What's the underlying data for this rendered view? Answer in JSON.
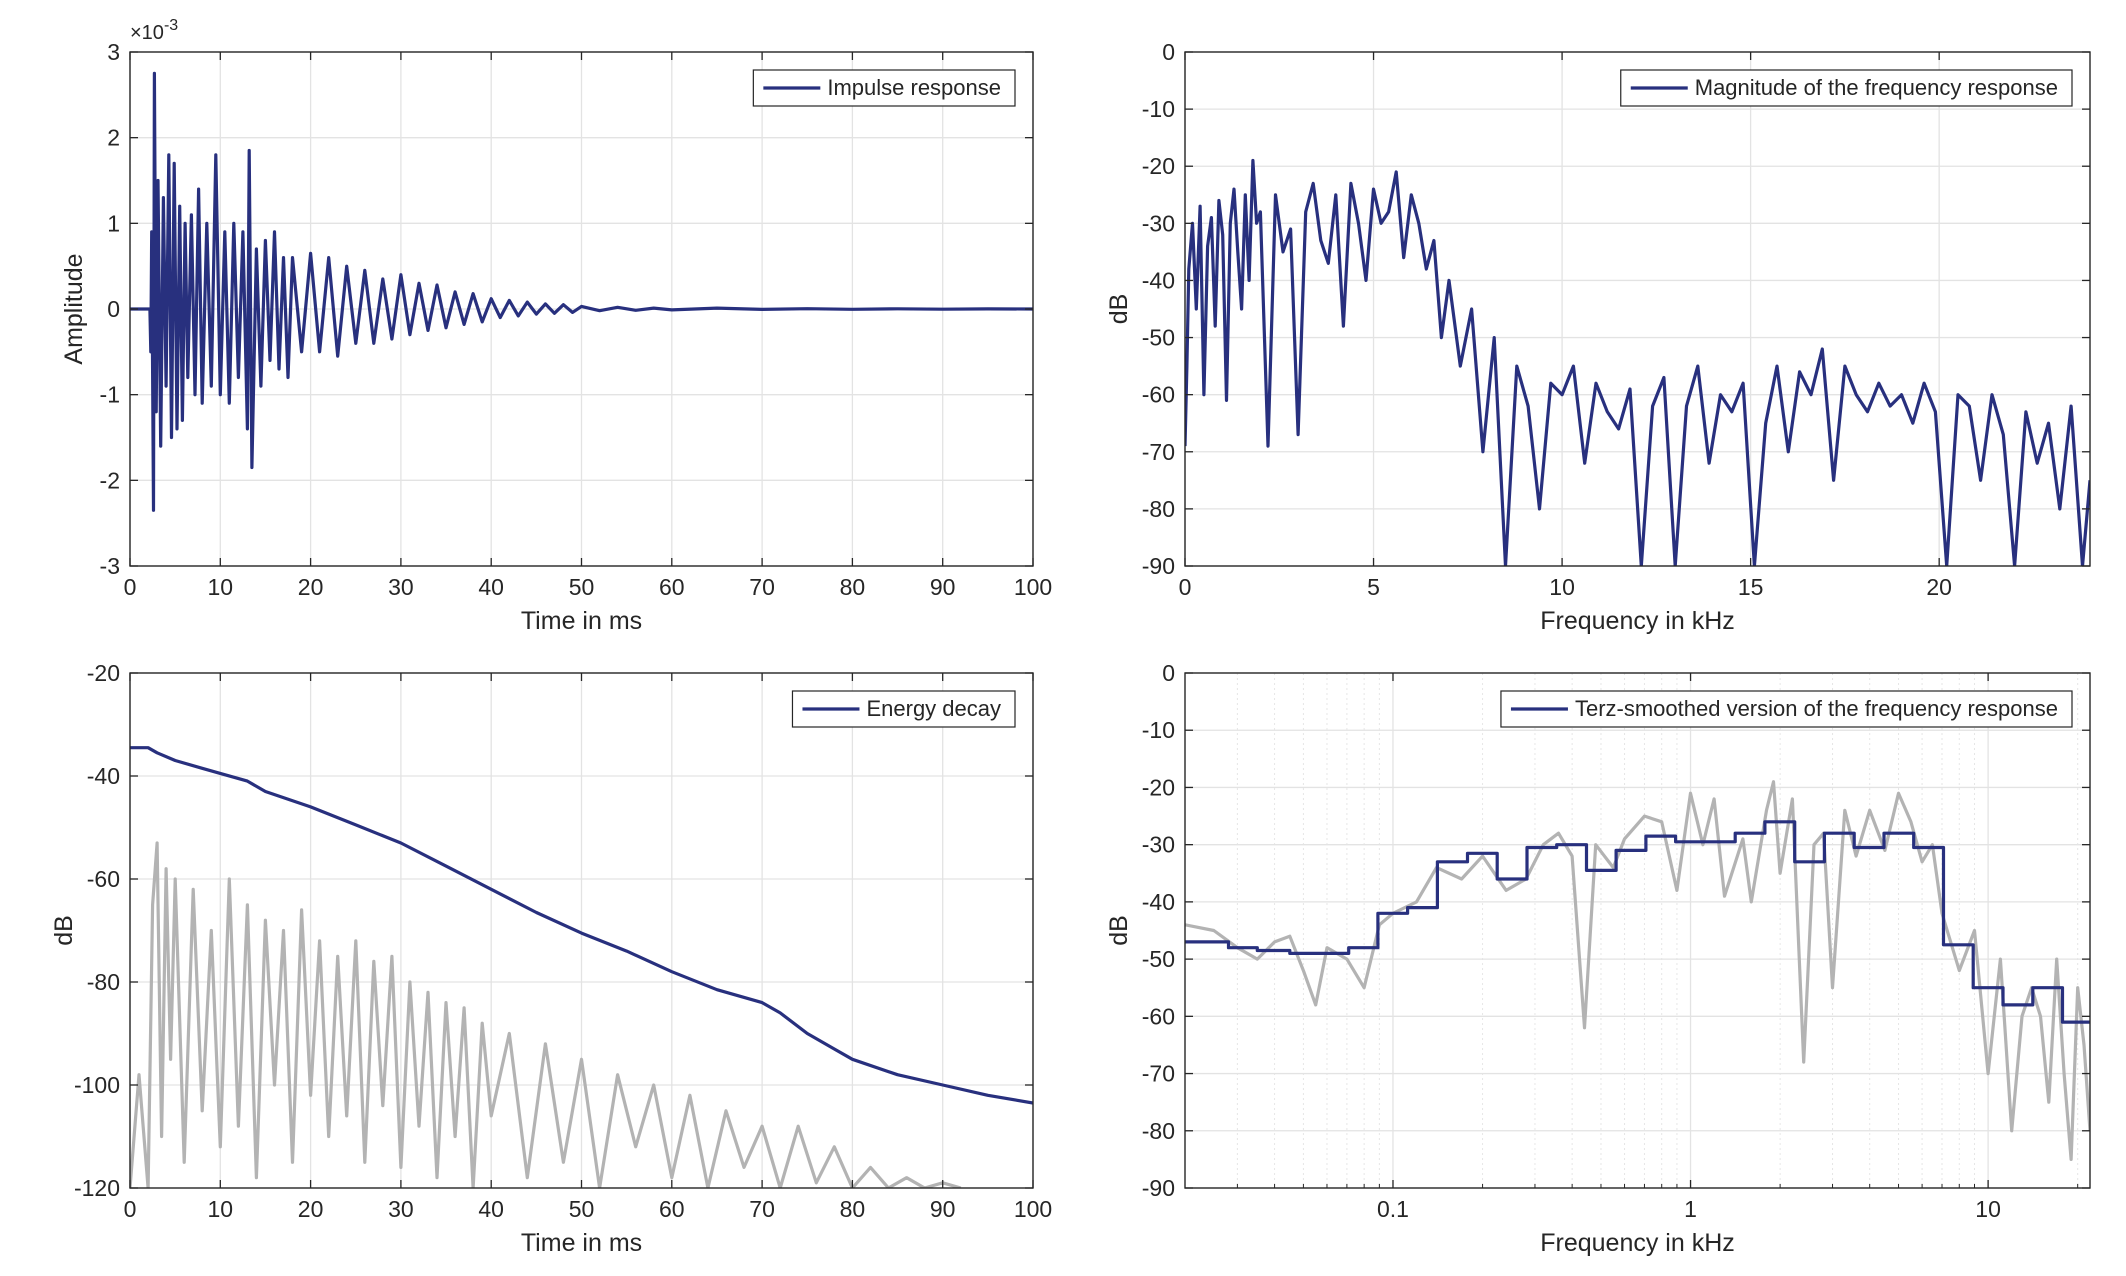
{
  "colors": {
    "series": "#28307e",
    "gray": "#b3b3b3",
    "grid": "#e3e3e3",
    "axis": "#262626"
  },
  "chart_data": [
    {
      "id": "impulse",
      "type": "line",
      "xlabel": "Time in ms",
      "ylabel": "Amplitude",
      "exponent_label": "×10^{-3}",
      "exponent_base": "×10",
      "exponent_sup": "-3",
      "xlim": [
        0,
        100
      ],
      "ylim": [
        -3,
        3
      ],
      "xticks": [
        0,
        10,
        20,
        30,
        40,
        50,
        60,
        70,
        80,
        90,
        100
      ],
      "xtick_labels": [
        "0",
        "10",
        "20",
        "30",
        "40",
        "50",
        "60",
        "70",
        "80",
        "90",
        "100"
      ],
      "yticks": [
        -3,
        -2,
        -1,
        0,
        1,
        2,
        3
      ],
      "ytick_labels": [
        "-3",
        "-2",
        "-1",
        "0",
        "1",
        "2",
        "3"
      ],
      "xscale": "linear",
      "grid": true,
      "legend_position": "top-right",
      "series": [
        {
          "name": "Impulse response",
          "color": "#28307e",
          "x": [
            0,
            2.2,
            2.3,
            2.4,
            2.6,
            2.7,
            2.9,
            3.1,
            3.4,
            3.7,
            4.0,
            4.3,
            4.6,
            4.9,
            5.2,
            5.5,
            5.8,
            6.1,
            6.4,
            6.8,
            7.2,
            7.6,
            8.0,
            8.5,
            9.0,
            9.5,
            10.0,
            10.5,
            11.0,
            11.5,
            12.0,
            12.5,
            13.0,
            13.2,
            13.5,
            14.0,
            14.5,
            15.0,
            15.5,
            16.0,
            16.5,
            17.0,
            17.5,
            18.0,
            19.0,
            20.0,
            21.0,
            22.0,
            23.0,
            24.0,
            25.0,
            26.0,
            27.0,
            28.0,
            29.0,
            30.0,
            31.0,
            32.0,
            33.0,
            34.0,
            35.0,
            36.0,
            37.0,
            38.0,
            39.0,
            40.0,
            41.0,
            42.0,
            43.0,
            44.0,
            45.0,
            46.0,
            47.0,
            48.0,
            49.0,
            50.0,
            52.0,
            54.0,
            56.0,
            58.0,
            60.0,
            65.0,
            70.0,
            75.0,
            80.0,
            85.0,
            90.0,
            95.0,
            100.0
          ],
          "y": [
            0,
            0,
            -0.5,
            0.9,
            -2.35,
            2.75,
            -1.2,
            1.5,
            -1.6,
            1.3,
            -0.9,
            1.8,
            -1.5,
            1.7,
            -1.4,
            1.2,
            -1.3,
            1.0,
            -0.8,
            1.1,
            -1.0,
            1.4,
            -1.1,
            1.0,
            -0.9,
            1.8,
            -1.0,
            0.9,
            -1.1,
            1.0,
            -0.8,
            0.9,
            -1.4,
            1.85,
            -1.85,
            0.7,
            -0.9,
            0.8,
            -0.6,
            0.9,
            -0.7,
            0.6,
            -0.8,
            0.6,
            -0.5,
            0.65,
            -0.5,
            0.6,
            -0.55,
            0.5,
            -0.4,
            0.45,
            -0.4,
            0.35,
            -0.35,
            0.4,
            -0.3,
            0.3,
            -0.25,
            0.28,
            -0.22,
            0.2,
            -0.18,
            0.18,
            -0.15,
            0.12,
            -0.1,
            0.1,
            -0.08,
            0.08,
            -0.06,
            0.06,
            -0.05,
            0.05,
            -0.04,
            0.03,
            -0.02,
            0.02,
            -0.015,
            0.01,
            -0.01,
            0.01,
            -0.005,
            0.004,
            -0.003,
            0.002,
            -0.002,
            0.001,
            0
          ]
        }
      ]
    },
    {
      "id": "magnitude",
      "type": "line",
      "xlabel": "Frequency in kHz",
      "ylabel": "dB",
      "xlim": [
        0,
        24
      ],
      "ylim": [
        -90,
        0
      ],
      "xticks": [
        0,
        5,
        10,
        15,
        20
      ],
      "xtick_labels": [
        "0",
        "5",
        "10",
        "15",
        "20"
      ],
      "yticks": [
        -90,
        -80,
        -70,
        -60,
        -50,
        -40,
        -30,
        -20,
        -10,
        0
      ],
      "ytick_labels": [
        "-90",
        "-80",
        "-70",
        "-60",
        "-50",
        "-40",
        "-30",
        "-20",
        "-10",
        "0"
      ],
      "xscale": "linear",
      "grid": true,
      "legend_position": "top-right",
      "series": [
        {
          "name": "Magnitude of the frequency response",
          "color": "#28307e",
          "x": [
            0,
            0.05,
            0.1,
            0.2,
            0.3,
            0.4,
            0.5,
            0.6,
            0.7,
            0.8,
            0.9,
            1.0,
            1.1,
            1.2,
            1.3,
            1.4,
            1.5,
            1.6,
            1.7,
            1.8,
            1.9,
            2.0,
            2.2,
            2.4,
            2.6,
            2.8,
            3.0,
            3.2,
            3.4,
            3.6,
            3.8,
            4.0,
            4.2,
            4.4,
            4.6,
            4.8,
            5.0,
            5.2,
            5.4,
            5.6,
            5.8,
            6.0,
            6.2,
            6.4,
            6.6,
            6.8,
            7.0,
            7.3,
            7.6,
            7.9,
            8.2,
            8.5,
            8.8,
            9.1,
            9.4,
            9.7,
            10.0,
            10.3,
            10.6,
            10.9,
            11.2,
            11.5,
            11.8,
            12.1,
            12.4,
            12.7,
            13.0,
            13.3,
            13.6,
            13.9,
            14.2,
            14.5,
            14.8,
            15.1,
            15.4,
            15.7,
            16.0,
            16.3,
            16.6,
            16.9,
            17.2,
            17.5,
            17.8,
            18.1,
            18.4,
            18.7,
            19.0,
            19.3,
            19.6,
            19.9,
            20.2,
            20.5,
            20.8,
            21.1,
            21.4,
            21.7,
            22.0,
            22.3,
            22.6,
            22.9,
            23.2,
            23.5,
            23.8,
            24.0
          ],
          "y": [
            -69,
            -55,
            -38,
            -30,
            -45,
            -27,
            -60,
            -34,
            -29,
            -48,
            -26,
            -32,
            -61,
            -30,
            -24,
            -35,
            -45,
            -25,
            -40,
            -19,
            -30,
            -28,
            -69,
            -25,
            -35,
            -31,
            -67,
            -28,
            -23,
            -33,
            -37,
            -25,
            -48,
            -23,
            -30,
            -40,
            -24,
            -30,
            -28,
            -21,
            -36,
            -25,
            -30,
            -38,
            -33,
            -50,
            -40,
            -55,
            -45,
            -70,
            -50,
            -90,
            -55,
            -62,
            -80,
            -58,
            -60,
            -55,
            -72,
            -58,
            -63,
            -66,
            -59,
            -90,
            -62,
            -57,
            -90,
            -62,
            -55,
            -72,
            -60,
            -63,
            -58,
            -90,
            -65,
            -55,
            -70,
            -56,
            -60,
            -52,
            -75,
            -55,
            -60,
            -63,
            -58,
            -62,
            -60,
            -65,
            -58,
            -63,
            -90,
            -60,
            -62,
            -75,
            -60,
            -67,
            -90,
            -63,
            -72,
            -65,
            -80,
            -62,
            -90,
            -75
          ]
        }
      ]
    },
    {
      "id": "energy",
      "type": "line",
      "xlabel": "Time in ms",
      "ylabel": "dB",
      "xlim": [
        0,
        100
      ],
      "ylim": [
        -120,
        -20
      ],
      "xticks": [
        0,
        10,
        20,
        30,
        40,
        50,
        60,
        70,
        80,
        90,
        100
      ],
      "xtick_labels": [
        "0",
        "10",
        "20",
        "30",
        "40",
        "50",
        "60",
        "70",
        "80",
        "90",
        "100"
      ],
      "yticks": [
        -120,
        -100,
        -80,
        -60,
        -40,
        -20
      ],
      "ytick_labels": [
        "-120",
        "-100",
        "-80",
        "-60",
        "-40",
        "-20"
      ],
      "xscale": "linear",
      "grid": true,
      "legend_position": "top-right",
      "series": [
        {
          "color": "#b3b3b3",
          "x": [
            0,
            1,
            2,
            2.5,
            3,
            3.5,
            4,
            4.5,
            5,
            6,
            7,
            8,
            9,
            10,
            11,
            12,
            13,
            14,
            15,
            16,
            17,
            18,
            19,
            20,
            21,
            22,
            23,
            24,
            25,
            26,
            27,
            28,
            29,
            30,
            31,
            32,
            33,
            34,
            35,
            36,
            37,
            38,
            39,
            40,
            42,
            44,
            46,
            48,
            50,
            52,
            54,
            56,
            58,
            60,
            62,
            64,
            66,
            68,
            70,
            72,
            74,
            76,
            78,
            80,
            82,
            84,
            86,
            88,
            90,
            92
          ],
          "y": [
            -120,
            -98,
            -120,
            -65,
            -53,
            -110,
            -58,
            -95,
            -60,
            -115,
            -62,
            -105,
            -70,
            -112,
            -60,
            -108,
            -65,
            -118,
            -68,
            -100,
            -70,
            -115,
            -66,
            -102,
            -72,
            -110,
            -75,
            -106,
            -72,
            -115,
            -76,
            -104,
            -75,
            -116,
            -80,
            -108,
            -82,
            -118,
            -84,
            -110,
            -85,
            -120,
            -88,
            -106,
            -90,
            -118,
            -92,
            -115,
            -95,
            -120,
            -98,
            -112,
            -100,
            -118,
            -102,
            -120,
            -105,
            -116,
            -108,
            -120,
            -108,
            -119,
            -112,
            -120,
            -116,
            -120,
            -118,
            -120,
            -119,
            -120
          ]
        },
        {
          "name": "Energy decay",
          "color": "#28307e",
          "x": [
            0,
            2,
            3,
            5,
            8,
            10,
            13,
            15,
            20,
            25,
            30,
            35,
            40,
            45,
            50,
            55,
            60,
            65,
            70,
            72,
            75,
            78,
            80,
            85,
            90,
            95,
            100
          ],
          "y": [
            -34.5,
            -34.5,
            -35.5,
            -37,
            -38.5,
            -39.5,
            -41,
            -43,
            -46,
            -49.5,
            -53,
            -57.5,
            -62,
            -66.5,
            -70.5,
            -74,
            -78,
            -81.5,
            -84,
            -86,
            -90,
            -93,
            -95,
            -98,
            -100,
            -102,
            -103.5
          ]
        }
      ]
    },
    {
      "id": "terz",
      "type": "line",
      "xlabel": "Frequency in kHz",
      "ylabel": "dB",
      "xlim": [
        0.02,
        22
      ],
      "ylim": [
        -90,
        0
      ],
      "xticks": [
        0.1,
        1,
        10
      ],
      "xtick_labels": [
        "0.1",
        "1",
        "10"
      ],
      "yticks": [
        -90,
        -80,
        -70,
        -60,
        -50,
        -40,
        -30,
        -20,
        -10,
        0
      ],
      "ytick_labels": [
        "-90",
        "-80",
        "-70",
        "-60",
        "-50",
        "-40",
        "-30",
        "-20",
        "-10",
        "0"
      ],
      "xscale": "log",
      "grid": true,
      "legend_position": "top-right",
      "series": [
        {
          "color": "#b3b3b3",
          "x": [
            0.02,
            0.025,
            0.03,
            0.035,
            0.04,
            0.045,
            0.05,
            0.055,
            0.06,
            0.07,
            0.08,
            0.09,
            0.1,
            0.12,
            0.14,
            0.17,
            0.2,
            0.24,
            0.28,
            0.32,
            0.36,
            0.4,
            0.44,
            0.48,
            0.55,
            0.6,
            0.7,
            0.8,
            0.9,
            1.0,
            1.1,
            1.2,
            1.3,
            1.5,
            1.6,
            1.8,
            1.9,
            2.0,
            2.2,
            2.4,
            2.6,
            2.8,
            3.0,
            3.3,
            3.6,
            4.0,
            4.5,
            5.0,
            5.5,
            6.0,
            6.5,
            7.0,
            8.0,
            9.0,
            10.0,
            11.0,
            12.0,
            13.0,
            14.0,
            15.0,
            16.0,
            17.0,
            18.0,
            19.0,
            20.0,
            21.0,
            22.0
          ],
          "y": [
            -44,
            -45,
            -48,
            -50,
            -47,
            -46,
            -52,
            -58,
            -48,
            -50,
            -55,
            -44,
            -42,
            -40,
            -34,
            -36,
            -32,
            -38,
            -36,
            -30,
            -28,
            -32,
            -62,
            -30,
            -34,
            -29,
            -25,
            -26,
            -38,
            -21,
            -30,
            -22,
            -39,
            -29,
            -40,
            -24,
            -19,
            -35,
            -22,
            -68,
            -30,
            -28,
            -55,
            -24,
            -32,
            -24,
            -31,
            -21,
            -26,
            -33,
            -30,
            -42,
            -52,
            -45,
            -70,
            -50,
            -80,
            -60,
            -55,
            -60,
            -75,
            -50,
            -70,
            -85,
            -55,
            -65,
            -80
          ]
        },
        {
          "name": "Terz-smoothed version of the frequency response",
          "color": "#28307e",
          "step_edges": [
            0.02,
            0.028,
            0.035,
            0.045,
            0.056,
            0.071,
            0.089,
            0.112,
            0.141,
            0.178,
            0.224,
            0.282,
            0.355,
            0.447,
            0.562,
            0.708,
            0.891,
            1.122,
            1.413,
            1.778,
            2.239,
            2.818,
            3.548,
            4.467,
            5.623,
            7.079,
            8.913,
            11.22,
            14.13,
            17.78,
            22.0
          ],
          "step_values": [
            -47,
            -48,
            -48.5,
            -49,
            -49,
            -48,
            -42,
            -41,
            -33,
            -31.5,
            -36,
            -30.5,
            -30,
            -34.5,
            -31,
            -28.5,
            -29.5,
            -29.5,
            -28,
            -26,
            -33,
            -28,
            -30.5,
            -28,
            -30.5,
            -47.5,
            -55,
            -58,
            -55,
            -61
          ]
        }
      ]
    }
  ]
}
